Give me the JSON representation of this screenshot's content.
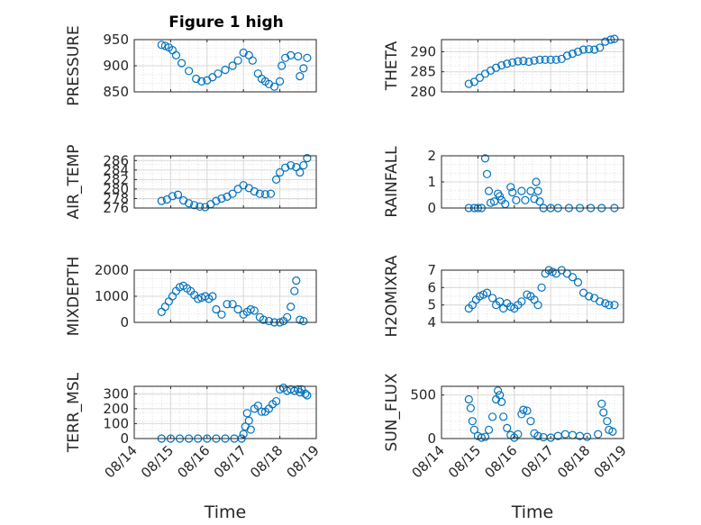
{
  "figure_title": "Figure 1 high",
  "colors": {
    "marker": "#0072bd",
    "axis": "#262626",
    "grid": "#d9d9d9"
  },
  "chart_data": [
    {
      "id": "pressure",
      "type": "scatter",
      "title": "Figure 1 high",
      "ylabel": "PRESSURE",
      "ylim": [
        850,
        950
      ],
      "yticks": [
        850,
        900,
        950
      ],
      "ytick_labels": [
        "850",
        "900",
        "950"
      ],
      "xlim": [
        0,
        5
      ],
      "x_tick_labels": [
        "08/14",
        "08/15",
        "08/16",
        "08/17",
        "08/18",
        "08/19"
      ],
      "xlabel": "Time",
      "x": [
        0.75,
        0.85,
        0.95,
        1.05,
        1.15,
        1.3,
        1.5,
        1.7,
        1.85,
        2.0,
        2.15,
        2.3,
        2.5,
        2.7,
        2.85,
        3.0,
        3.15,
        3.25,
        3.4,
        3.5,
        3.6,
        3.7,
        3.85,
        4.0,
        4.05,
        4.15,
        4.3,
        4.5,
        4.55,
        4.65,
        4.75
      ],
      "y": [
        940,
        938,
        935,
        930,
        920,
        905,
        890,
        875,
        870,
        872,
        878,
        885,
        892,
        900,
        910,
        925,
        920,
        910,
        885,
        875,
        870,
        865,
        860,
        870,
        900,
        915,
        920,
        918,
        880,
        895,
        915
      ]
    },
    {
      "id": "theta",
      "type": "scatter",
      "ylabel": "THETA",
      "ylim": [
        280,
        293
      ],
      "yticks": [
        280,
        285,
        290
      ],
      "ytick_labels": [
        "280",
        "285",
        "290"
      ],
      "xlim": [
        0,
        5
      ],
      "x_tick_labels": [
        "08/14",
        "08/15",
        "08/16",
        "08/17",
        "08/18",
        "08/19"
      ],
      "xlabel": "Time",
      "x": [
        0.75,
        0.9,
        1.05,
        1.2,
        1.35,
        1.5,
        1.65,
        1.8,
        1.95,
        2.1,
        2.25,
        2.4,
        2.55,
        2.7,
        2.85,
        3.0,
        3.15,
        3.3,
        3.45,
        3.6,
        3.75,
        3.9,
        4.05,
        4.2,
        4.35,
        4.5,
        4.65,
        4.75
      ],
      "y": [
        282,
        282.5,
        283.5,
        284.5,
        285.3,
        286,
        286.6,
        287,
        287.3,
        287.6,
        287.7,
        287.5,
        287.8,
        288,
        288,
        288,
        288,
        288.2,
        289,
        289.5,
        290,
        290.5,
        290.6,
        290.5,
        291,
        292.5,
        293,
        293.2
      ]
    },
    {
      "id": "air_temp",
      "type": "scatter",
      "ylabel": "AIR_TEMP",
      "ylim": [
        276,
        287
      ],
      "yticks": [
        276,
        278,
        280,
        282,
        284,
        286
      ],
      "ytick_labels": [
        "276",
        "278",
        "280",
        "282",
        "284",
        "286"
      ],
      "xlim": [
        0,
        5
      ],
      "x_tick_labels": [
        "08/14",
        "08/15",
        "08/16",
        "08/17",
        "08/18",
        "08/19"
      ],
      "xlabel": "Time",
      "x": [
        0.75,
        0.9,
        1.05,
        1.2,
        1.35,
        1.5,
        1.65,
        1.8,
        1.95,
        2.1,
        2.25,
        2.4,
        2.55,
        2.7,
        2.85,
        3.0,
        3.15,
        3.3,
        3.45,
        3.6,
        3.75,
        3.9,
        4.0,
        4.15,
        4.3,
        4.45,
        4.55,
        4.65,
        4.75
      ],
      "y": [
        277.5,
        277.8,
        278.5,
        278.8,
        277.6,
        277,
        276.6,
        276.3,
        276.2,
        276.8,
        277.5,
        278,
        278.4,
        279,
        280,
        280.8,
        280.2,
        279.5,
        279,
        278.9,
        279,
        282,
        283.5,
        284.5,
        285,
        284.6,
        283.5,
        285,
        286.5
      ]
    },
    {
      "id": "rainfall",
      "type": "scatter",
      "ylabel": "RAINFALL",
      "ylim": [
        0,
        2
      ],
      "yticks": [
        0,
        1,
        2
      ],
      "ytick_labels": [
        "0",
        "1",
        "2"
      ],
      "xlim": [
        0,
        5
      ],
      "x_tick_labels": [
        "08/14",
        "08/15",
        "08/16",
        "08/17",
        "08/18",
        "08/19"
      ],
      "xlabel": "Time",
      "x": [
        0.75,
        0.9,
        1.0,
        1.1,
        1.2,
        1.25,
        1.3,
        1.35,
        1.45,
        1.55,
        1.6,
        1.65,
        1.75,
        1.9,
        1.95,
        2.05,
        2.2,
        2.3,
        2.45,
        2.55,
        2.6,
        2.65,
        2.7,
        2.8,
        3.0,
        3.2,
        3.5,
        3.8,
        4.1,
        4.4,
        4.75
      ],
      "y": [
        0,
        0,
        0,
        0,
        1.9,
        1.3,
        0.65,
        0.2,
        0.25,
        0.55,
        0.45,
        0.3,
        0.15,
        0.8,
        0.6,
        0.3,
        0.65,
        0.3,
        0.65,
        0.35,
        1.0,
        0.65,
        0.25,
        0.0,
        0,
        0,
        0,
        0,
        0,
        0,
        0
      ]
    },
    {
      "id": "mixdepth",
      "type": "scatter",
      "ylabel": "MIXDEPTH",
      "ylim": [
        0,
        2000
      ],
      "yticks": [
        0,
        1000,
        2000
      ],
      "ytick_labels": [
        "0",
        "1000",
        "2000"
      ],
      "xlim": [
        0,
        5
      ],
      "x_tick_labels": [
        "08/14",
        "08/15",
        "08/16",
        "08/17",
        "08/18",
        "08/19"
      ],
      "xlabel": "Time",
      "x": [
        0.75,
        0.85,
        0.95,
        1.05,
        1.15,
        1.25,
        1.35,
        1.45,
        1.55,
        1.65,
        1.75,
        1.85,
        1.95,
        2.05,
        2.15,
        2.25,
        2.4,
        2.55,
        2.7,
        2.85,
        3.0,
        3.1,
        3.2,
        3.3,
        3.45,
        3.55,
        3.7,
        3.85,
        4.0,
        4.1,
        4.2,
        4.3,
        4.4,
        4.45,
        4.55,
        4.65
      ],
      "y": [
        400,
        600,
        800,
        1000,
        1200,
        1350,
        1400,
        1300,
        1200,
        1050,
        900,
        950,
        1000,
        900,
        1000,
        500,
        300,
        700,
        700,
        500,
        300,
        400,
        500,
        450,
        200,
        100,
        50,
        0,
        0,
        50,
        200,
        600,
        1200,
        1600,
        100,
        50
      ]
    },
    {
      "id": "h2omixra",
      "type": "scatter",
      "ylabel": "H2OMIXRA",
      "ylim": [
        4,
        7
      ],
      "yticks": [
        4,
        5,
        6,
        7
      ],
      "ytick_labels": [
        "4",
        "5",
        "6",
        "7"
      ],
      "xlim": [
        0,
        5
      ],
      "x_tick_labels": [
        "08/14",
        "08/15",
        "08/16",
        "08/17",
        "08/18",
        "08/19"
      ],
      "xlabel": "Time",
      "x": [
        0.75,
        0.85,
        0.95,
        1.05,
        1.15,
        1.25,
        1.4,
        1.5,
        1.6,
        1.7,
        1.8,
        1.9,
        2.0,
        2.1,
        2.2,
        2.35,
        2.45,
        2.55,
        2.65,
        2.75,
        2.85,
        2.95,
        3.05,
        3.15,
        3.3,
        3.45,
        3.6,
        3.75,
        3.9,
        4.05,
        4.2,
        4.35,
        4.5,
        4.6,
        4.75
      ],
      "y": [
        4.8,
        5.0,
        5.3,
        5.5,
        5.6,
        5.7,
        5.4,
        5.0,
        5.2,
        4.8,
        5.1,
        4.9,
        4.8,
        5.0,
        5.2,
        5.6,
        5.5,
        5.3,
        5.0,
        6.0,
        6.8,
        7.0,
        6.9,
        6.8,
        7.0,
        6.8,
        6.6,
        6.3,
        5.7,
        5.5,
        5.4,
        5.2,
        5.1,
        5.0,
        5.0
      ]
    },
    {
      "id": "terr_msl",
      "type": "scatter",
      "ylabel": "TERR_MSL",
      "ylim": [
        0,
        350
      ],
      "yticks": [
        0,
        100,
        200,
        300
      ],
      "ytick_labels": [
        "0",
        "100",
        "200",
        "300"
      ],
      "xlim": [
        0,
        5
      ],
      "x_tick_labels": [
        "08/14",
        "08/15",
        "08/16",
        "08/17",
        "08/18",
        "08/19"
      ],
      "xlabel": "Time",
      "x": [
        0.75,
        1.0,
        1.25,
        1.5,
        1.75,
        2.0,
        2.25,
        2.5,
        2.75,
        2.95,
        3.0,
        3.05,
        3.1,
        3.15,
        3.2,
        3.3,
        3.4,
        3.5,
        3.6,
        3.7,
        3.8,
        3.9,
        4.0,
        4.1,
        4.2,
        4.3,
        4.4,
        4.5,
        4.55,
        4.6,
        4.7,
        4.75
      ],
      "y": [
        0,
        0,
        0,
        0,
        0,
        0,
        0,
        0,
        0,
        0,
        30,
        80,
        170,
        120,
        60,
        200,
        220,
        180,
        180,
        200,
        230,
        250,
        330,
        340,
        320,
        330,
        320,
        330,
        310,
        330,
        300,
        290
      ]
    },
    {
      "id": "sun_flux",
      "type": "scatter",
      "ylabel": "SUN_FLUX",
      "ylim": [
        0,
        600
      ],
      "yticks": [
        0,
        500
      ],
      "ytick_labels": [
        "0",
        "500"
      ],
      "xlim": [
        0,
        5
      ],
      "x_tick_labels": [
        "08/14",
        "08/15",
        "08/16",
        "08/17",
        "08/18",
        "08/19"
      ],
      "xlabel": "Time",
      "x": [
        0.75,
        0.8,
        0.85,
        0.9,
        1.0,
        1.1,
        1.2,
        1.3,
        1.4,
        1.5,
        1.55,
        1.6,
        1.65,
        1.7,
        1.8,
        1.9,
        2.0,
        2.1,
        2.2,
        2.25,
        2.35,
        2.45,
        2.55,
        2.65,
        2.8,
        3.0,
        3.2,
        3.4,
        3.6,
        3.8,
        4.0,
        4.3,
        4.4,
        4.45,
        4.55,
        4.6,
        4.7
      ],
      "y": [
        450,
        350,
        200,
        100,
        30,
        10,
        20,
        100,
        250,
        450,
        550,
        500,
        420,
        250,
        120,
        40,
        10,
        50,
        280,
        330,
        320,
        200,
        60,
        30,
        15,
        10,
        30,
        50,
        40,
        30,
        20,
        50,
        400,
        300,
        200,
        100,
        80
      ]
    }
  ]
}
